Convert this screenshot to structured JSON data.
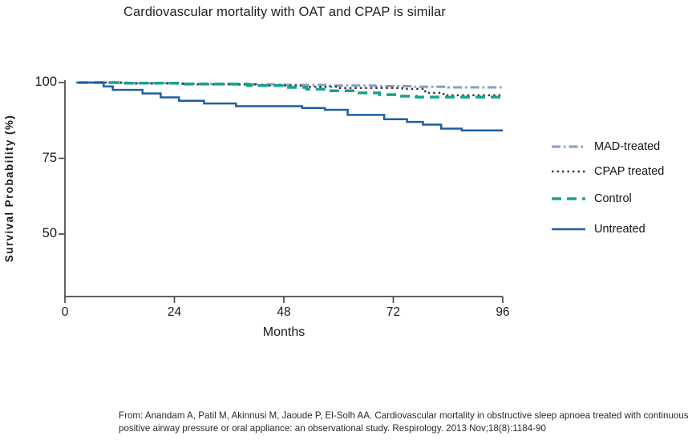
{
  "title": "Cardiovascular mortality with OAT and CPAP is similar",
  "chart_data": {
    "type": "line",
    "subtype": "kaplan-meier-step-survival",
    "title": "Cardiovascular mortality with OAT and CPAP is similar",
    "xlabel": "Months",
    "ylabel": "Survival Probability (%)",
    "x_ticks": [
      0,
      24,
      48,
      72,
      96
    ],
    "y_ticks": [
      100,
      75,
      50
    ],
    "xlim": [
      0,
      96
    ],
    "ylim": [
      29,
      102
    ],
    "grid": "off",
    "legend_position": "right-outside",
    "axis_color": "#4a4a4a",
    "series": [
      {
        "name": "MAD-treated",
        "line_style": "dashdot",
        "color": "#8b9cc6",
        "width": 3,
        "points": [
          [
            3,
            100
          ],
          [
            12,
            99.8
          ],
          [
            24,
            99.6
          ],
          [
            36,
            99.4
          ],
          [
            48,
            99.2
          ],
          [
            58,
            99.0
          ],
          [
            68,
            98.8
          ],
          [
            76,
            98.6
          ],
          [
            84,
            98.4
          ],
          [
            96,
            98.3
          ]
        ]
      },
      {
        "name": "CPAP treated",
        "line_style": "dotted",
        "color": "#3a3a3c",
        "width": 2.5,
        "points": [
          [
            3,
            100
          ],
          [
            14,
            99.7
          ],
          [
            28,
            99.4
          ],
          [
            42,
            99.0
          ],
          [
            52,
            98.6
          ],
          [
            60,
            98.2
          ],
          [
            74,
            97.9
          ],
          [
            79,
            96.6
          ],
          [
            83,
            95.8
          ],
          [
            96,
            95.7
          ]
        ]
      },
      {
        "name": "Control",
        "line_style": "dashed",
        "color": "#16a38e",
        "width": 3.5,
        "points": [
          [
            3,
            100
          ],
          [
            12,
            99.8
          ],
          [
            26,
            99.5
          ],
          [
            40,
            99.0
          ],
          [
            48,
            98.4
          ],
          [
            53,
            97.8
          ],
          [
            58,
            97.3
          ],
          [
            64,
            96.6
          ],
          [
            69,
            96.0
          ],
          [
            73,
            95.5
          ],
          [
            77,
            95.2
          ],
          [
            96,
            95.1
          ]
        ]
      },
      {
        "name": "Untreated",
        "line_style": "solid",
        "color": "#1d5fa3",
        "width": 2.5,
        "points": [
          [
            2.5,
            100
          ],
          [
            8.5,
            98.7
          ],
          [
            10.5,
            97.6
          ],
          [
            17,
            96.4
          ],
          [
            21,
            95.1
          ],
          [
            25,
            94.0
          ],
          [
            30.5,
            93.1
          ],
          [
            37.5,
            92.2
          ],
          [
            52,
            91.6
          ],
          [
            57,
            91.0
          ],
          [
            62,
            89.3
          ],
          [
            70,
            87.9
          ],
          [
            75,
            87.0
          ],
          [
            78.5,
            86.1
          ],
          [
            82.5,
            84.8
          ],
          [
            87,
            84.2
          ],
          [
            96,
            84.2
          ]
        ]
      }
    ]
  },
  "citation": {
    "line1": "From: Anandam A, Patil M, Akinnusi M, Jaoude P, El-Solh AA. Cardiovascular mortality in obstructive sleep apnoea treated with continuous",
    "line2": "positive airway pressure or oral appliance: an observational study. Respirology. 2013 Nov;18(8):1184-90"
  }
}
